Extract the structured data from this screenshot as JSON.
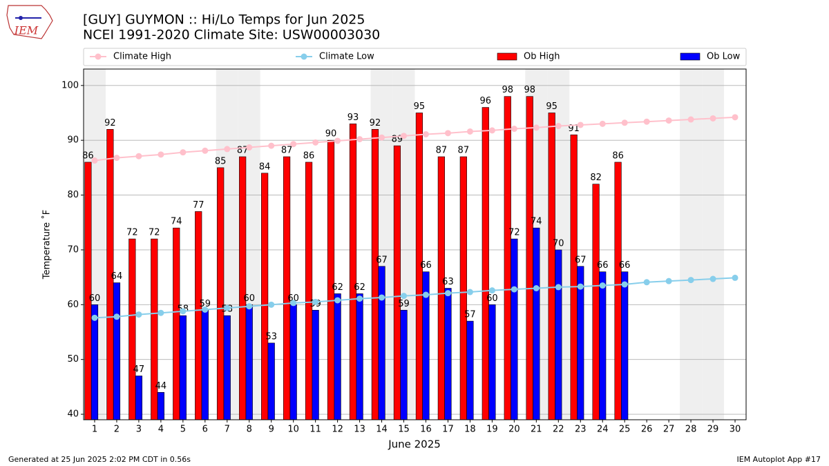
{
  "logo": "IEM",
  "footer_left": "Generated at 25 Jun 2025 2:02 PM CDT in 0.56s",
  "footer_right": "IEM Autoplot App #17",
  "chart_data": {
    "type": "bar_line",
    "title": "[GUY] GUYMON :: Hi/Lo Temps for Jun 2025",
    "subtitle": "NCEI 1991-2020 Climate Site: USW00003030",
    "x_label": "June 2025",
    "y_label": "Temperature ˚F",
    "x": [
      1,
      2,
      3,
      4,
      5,
      6,
      7,
      8,
      9,
      10,
      11,
      12,
      13,
      14,
      15,
      16,
      17,
      18,
      19,
      20,
      21,
      22,
      23,
      24,
      25,
      26,
      27,
      28,
      29,
      30
    ],
    "xlim": [
      0.5,
      30.5
    ],
    "xticks": [
      1,
      2,
      3,
      4,
      5,
      6,
      7,
      8,
      9,
      10,
      11,
      12,
      13,
      14,
      15,
      16,
      17,
      18,
      19,
      20,
      21,
      22,
      23,
      24,
      25,
      26,
      27,
      28,
      29,
      30
    ],
    "ylim": [
      39,
      103
    ],
    "yticks": [
      40,
      50,
      60,
      70,
      80,
      90,
      100
    ],
    "grid": true,
    "shaded_days": [
      1,
      7,
      8,
      14,
      15,
      21,
      22,
      28,
      29
    ],
    "shade_color": "#efefef",
    "series": [
      {
        "name": "Climate High",
        "kind": "line",
        "color": "#ffc0cb",
        "values": [
          86.3,
          86.8,
          87.1,
          87.4,
          87.8,
          88.1,
          88.4,
          88.7,
          89.0,
          89.3,
          89.6,
          89.9,
          90.2,
          90.5,
          90.8,
          91.1,
          91.3,
          91.6,
          91.8,
          92.1,
          92.3,
          92.6,
          92.8,
          93.0,
          93.2,
          93.4,
          93.6,
          93.8,
          94.0,
          94.2
        ]
      },
      {
        "name": "Climate Low",
        "kind": "line",
        "color": "#87ceeb",
        "values": [
          57.6,
          57.8,
          58.2,
          58.5,
          58.8,
          59.1,
          59.4,
          59.7,
          60.0,
          60.3,
          60.5,
          60.8,
          61.1,
          61.3,
          61.6,
          61.8,
          62.1,
          62.3,
          62.6,
          62.8,
          63.0,
          63.2,
          63.3,
          63.5,
          63.7,
          64.1,
          64.3,
          64.5,
          64.7,
          64.9
        ]
      },
      {
        "name": "Ob High",
        "kind": "bar",
        "color": "#ff0000",
        "values": [
          86,
          92,
          72,
          72,
          74,
          77,
          85,
          87,
          84,
          87,
          86,
          90,
          93,
          92,
          89,
          95,
          87,
          87,
          96,
          98,
          98,
          95,
          91,
          82,
          86,
          null,
          null,
          null,
          null,
          null
        ]
      },
      {
        "name": "Ob Low",
        "kind": "bar",
        "color": "#0000ff",
        "values": [
          60,
          64,
          47,
          44,
          58,
          59,
          58,
          60,
          53,
          60,
          59,
          62,
          62,
          67,
          59,
          66,
          63,
          57,
          60,
          72,
          74,
          70,
          67,
          66,
          66,
          null,
          null,
          null,
          null,
          null
        ]
      }
    ]
  }
}
